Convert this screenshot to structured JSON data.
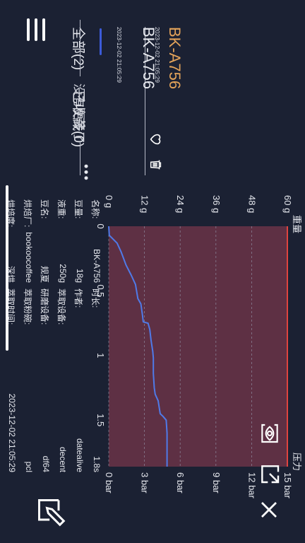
{
  "tabs": {
    "all": "全部(2)",
    "favorites": "已收藏(0)"
  },
  "more_dots": "•••",
  "records": [
    {
      "name": "BK-A756",
      "timestamp": "2023-12-02 21:05:29",
      "color": "#e3a35a"
    },
    {
      "name": "BK-A756",
      "timestamp": "2023-12-02 21:05:29",
      "color": "#e6e8ee"
    }
  ],
  "no_more": "没有更多了",
  "chart_labels": {
    "weight_title": "重量",
    "pressure_title": "压力"
  },
  "chart_data": {
    "type": "line",
    "x": {
      "ticks": [
        0,
        0.5,
        1,
        1.5
      ],
      "range": [
        0,
        1.86
      ]
    },
    "y_left": {
      "label": "重量",
      "ticks": [
        "0 g",
        "12 g",
        "24 g",
        "36 g",
        "48 g",
        "60 g"
      ],
      "range": [
        0,
        60
      ]
    },
    "y_right": {
      "label": "压力",
      "ticks": [
        "0 bar",
        "3 bar",
        "6 bar",
        "9 bar",
        "12 bar",
        "15 bar"
      ],
      "range": [
        0,
        15
      ]
    },
    "series": [
      {
        "axis": "left",
        "color": "#4f7ae8",
        "points": [
          [
            0,
            0
          ],
          [
            0.07,
            0.2
          ],
          [
            0.13,
            2.8
          ],
          [
            0.2,
            4.2
          ],
          [
            0.3,
            5.8
          ],
          [
            0.38,
            7.6
          ],
          [
            0.45,
            9.0
          ],
          [
            0.56,
            9.8
          ],
          [
            0.6,
            10.8
          ],
          [
            0.68,
            11.3
          ],
          [
            0.74,
            11.6
          ],
          [
            0.75,
            13.2
          ],
          [
            0.8,
            13.8
          ],
          [
            0.88,
            14.2
          ],
          [
            0.97,
            14.8
          ],
          [
            1.02,
            15.0
          ],
          [
            1.14,
            15.0
          ],
          [
            1.25,
            15.3
          ],
          [
            1.3,
            15.6
          ],
          [
            1.35,
            16.6
          ],
          [
            1.45,
            17.3
          ],
          [
            1.47,
            18.2
          ],
          [
            1.5,
            19.3
          ],
          [
            1.6,
            19.6
          ],
          [
            1.75,
            19.6
          ],
          [
            1.86,
            19.6
          ]
        ]
      },
      {
        "axis": "right",
        "color": "#e0433f",
        "points": [
          [
            0,
            15
          ],
          [
            1.86,
            15
          ]
        ]
      }
    ],
    "shading": [
      {
        "from": 0,
        "to": 1.86,
        "color": "#6a2e3e"
      }
    ]
  },
  "info": {
    "rows": [
      {
        "l1": "名称:",
        "v1": "BK-A756",
        "l2": "时长:",
        "v2": "1.8s"
      },
      {
        "l1": "豆量:",
        "v1": "18g",
        "l2": "作者:",
        "v2": "datealive"
      },
      {
        "l1": "液重:",
        "v1": "250g",
        "l2": "萃取设备:",
        "v2": "decent"
      },
      {
        "l1": "豆名:",
        "v1": "规夏",
        "l2": "研磨设备:",
        "v2": "df64"
      },
      {
        "l1": "烘焙厂:",
        "v1": "bookoocoffee",
        "l2": "萃取粉碗:",
        "v2": "pcl"
      },
      {
        "l1": "烘焙度:",
        "v1": "深烘",
        "l2": "萃取时间:",
        "v2": "2023-12-02 21:05:29"
      }
    ]
  }
}
